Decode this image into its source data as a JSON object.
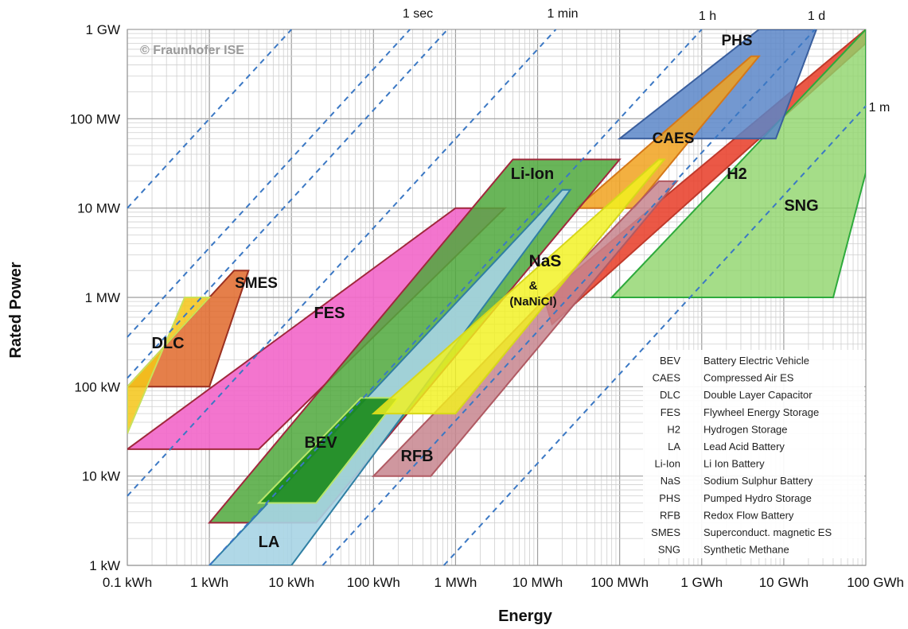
{
  "chart_data": {
    "type": "area",
    "xlabel": "Energy",
    "ylabel": "Rated Power",
    "x_scale": "log",
    "y_scale": "log",
    "x_unit": "kWh",
    "y_unit": "kW",
    "xlim": [
      0.1,
      100000000
    ],
    "ylim": [
      1,
      1000000
    ],
    "x_ticks": [
      {
        "value": 0.1,
        "label": "0.1 kWh"
      },
      {
        "value": 1,
        "label": "1 kWh"
      },
      {
        "value": 10,
        "label": "10 kWh"
      },
      {
        "value": 100,
        "label": "100 kWh"
      },
      {
        "value": 1000,
        "label": "1 MWh"
      },
      {
        "value": 10000,
        "label": "10 MWh"
      },
      {
        "value": 100000,
        "label": "100 MWh"
      },
      {
        "value": 1000000,
        "label": "1 GWh"
      },
      {
        "value": 10000000,
        "label": "10 GWh"
      },
      {
        "value": 100000000,
        "label": "100 GWh"
      }
    ],
    "y_ticks": [
      {
        "value": 1,
        "label": "1 kW"
      },
      {
        "value": 10,
        "label": "10 kW"
      },
      {
        "value": 100,
        "label": "100 kW"
      },
      {
        "value": 1000,
        "label": "1 MW"
      },
      {
        "value": 10000,
        "label": "10 MW"
      },
      {
        "value": 100000,
        "label": "100 MW"
      },
      {
        "value": 1000000,
        "label": "1 GW"
      }
    ],
    "grid": true,
    "watermark": "© Fraunhofer ISE",
    "discharge_time_lines": [
      {
        "label": "1 sec",
        "hours": 0.000278
      },
      {
        "label": "1 min",
        "hours": 0.0167
      },
      {
        "label": "1 h",
        "hours": 1
      },
      {
        "label": "1 d",
        "hours": 24
      },
      {
        "label": "1 m",
        "hours": 720
      }
    ],
    "regions": [
      {
        "name": "H2",
        "label": "H2",
        "fill": "#e8412c",
        "stroke": "#c0392b",
        "energy_range_kWh": [
          5000,
          100000000
        ],
        "power_range_kW": [
          500,
          700000
        ]
      },
      {
        "name": "SNG",
        "label": "SNG",
        "fill": "#8fd46a",
        "stroke": "#2eaa3c",
        "energy_range_kWh": [
          70000,
          100000000
        ],
        "power_range_kW": [
          1000,
          1000000
        ]
      },
      {
        "name": "PHS",
        "label": "PHS",
        "fill": "#5b86c8",
        "stroke": "#3a5f9e",
        "energy_range_kWh": [
          100000,
          10000000
        ],
        "power_range_kW": [
          60000,
          1000000
        ]
      },
      {
        "name": "CAES",
        "label": "CAES",
        "fill": "#f1a21e",
        "stroke": "#d4781a",
        "energy_range_kWh": [
          30000,
          5000000
        ],
        "power_range_kW": [
          10000,
          500000
        ]
      },
      {
        "name": "FES",
        "label": "FES",
        "fill": "#f266c9",
        "stroke": "#a0283c",
        "energy_range_kWh": [
          0.1,
          4000
        ],
        "power_range_kW": [
          20,
          10000
        ]
      },
      {
        "name": "Li-Ion",
        "label": "Li-Ion",
        "fill": "#4fa83c",
        "stroke": "#a0283c",
        "energy_range_kWh": [
          1,
          100000
        ],
        "power_range_kW": [
          3,
          35000
        ]
      },
      {
        "name": "LA",
        "label": "LA",
        "fill": "#a7d4e4",
        "stroke": "#2f7fa3",
        "energy_range_kWh": [
          1,
          20000
        ],
        "power_range_kW": [
          1,
          16000
        ]
      },
      {
        "name": "BEV",
        "label": "BEV",
        "fill": "#1a8a1a",
        "stroke": "#b8e66a",
        "energy_range_kWh": [
          4,
          200
        ],
        "power_range_kW": [
          5,
          75
        ]
      },
      {
        "name": "RFB",
        "label": "RFB",
        "fill": "#c7858e",
        "stroke": "#b05a63",
        "energy_range_kWh": [
          100,
          500000
        ],
        "power_range_kW": [
          10,
          20000
        ]
      },
      {
        "name": "NaS",
        "label": "NaS",
        "fill": "#f2f21e",
        "stroke": "#d7d71a",
        "energy_range_kWh": [
          100,
          300000
        ],
        "power_range_kW": [
          50,
          35000
        ]
      },
      {
        "name": "SMES",
        "label": "SMES",
        "fill": "#e0682a",
        "stroke": "#9a3020",
        "energy_range_kWh": [
          0.1,
          2
        ],
        "power_range_kW": [
          100,
          2000
        ]
      },
      {
        "name": "DLC",
        "label": "DLC",
        "fill": "#f5c518",
        "stroke": "#c9e05a",
        "energy_range_kWh": [
          0.1,
          1
        ],
        "power_range_kW": [
          30,
          1000
        ]
      }
    ],
    "nas_sublabels": [
      "&",
      "(NaNiCl)"
    ],
    "legend": {
      "position": "bottom-right",
      "entries": [
        {
          "abbr": "BEV",
          "name": "Battery  Electric Vehicle"
        },
        {
          "abbr": "CAES",
          "name": "Compressed Air ES"
        },
        {
          "abbr": "DLC",
          "name": "Double Layer Capacitor"
        },
        {
          "abbr": "FES",
          "name": "Flywheel  Energy Storage"
        },
        {
          "abbr": "H2",
          "name": "Hydrogen Storage"
        },
        {
          "abbr": "LA",
          "name": "Lead Acid Battery"
        },
        {
          "abbr": "Li-Ion",
          "name": "Li Ion Battery"
        },
        {
          "abbr": "NaS",
          "name": "Sodium Sulphur Battery"
        },
        {
          "abbr": "PHS",
          "name": "Pumped Hydro Storage"
        },
        {
          "abbr": "RFB",
          "name": "Redox Flow  Battery"
        },
        {
          "abbr": "SMES",
          "name": "Superconduct. magnetic ES"
        },
        {
          "abbr": "SNG",
          "name": "Synthetic Methane"
        }
      ]
    }
  }
}
